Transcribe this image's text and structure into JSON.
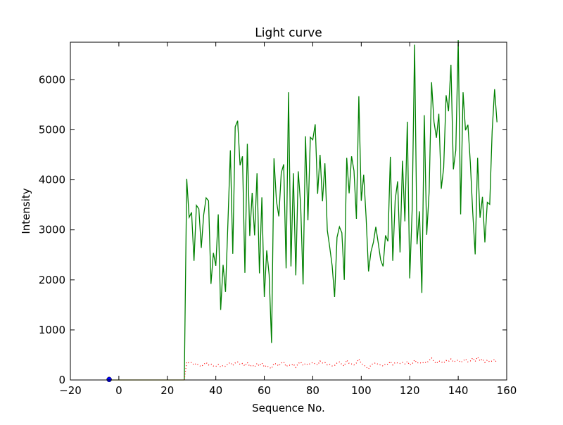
{
  "chart_data": {
    "type": "line",
    "title": "Light curve",
    "xlabel": "Sequence No.",
    "ylabel": "Intensity",
    "xlim": [
      -20,
      160
    ],
    "ylim": [
      0,
      6750
    ],
    "xticks": [
      -20,
      0,
      20,
      40,
      60,
      80,
      100,
      120,
      140,
      160
    ],
    "yticks": [
      0,
      1000,
      2000,
      3000,
      4000,
      5000,
      6000
    ],
    "grid": false,
    "colors": {
      "signal": "#008000",
      "background": "#ff0000",
      "marker": "#0000ff",
      "baseline": "#bfbf00"
    },
    "series": [
      {
        "style": "solid",
        "color": "#008000",
        "x": [
          27,
          28,
          29,
          30,
          31,
          32,
          33,
          34,
          35,
          36,
          37,
          38,
          39,
          40,
          41,
          42,
          43,
          44,
          45,
          46,
          47,
          48,
          49,
          50,
          51,
          52,
          53,
          54,
          55,
          56,
          57,
          58,
          59,
          60,
          61,
          62,
          63,
          64,
          65,
          66,
          67,
          68,
          69,
          70,
          71,
          72,
          73,
          74,
          75,
          76,
          77,
          78,
          79,
          80,
          81,
          82,
          83,
          84,
          85,
          86,
          87,
          88,
          89,
          90,
          91,
          92,
          93,
          94,
          95,
          96,
          97,
          98,
          99,
          100,
          101,
          102,
          103,
          104,
          105,
          106,
          107,
          108,
          109,
          110,
          111,
          112,
          113,
          114,
          115,
          116,
          117,
          118,
          119,
          120,
          121,
          122,
          123,
          124,
          125,
          126,
          127,
          128,
          129,
          130,
          131,
          132,
          133,
          134,
          135,
          136,
          137,
          138,
          139,
          140,
          141,
          142,
          143,
          144,
          145,
          146,
          147,
          148,
          149,
          150,
          151,
          152,
          153,
          154,
          155,
          156
        ],
        "y": [
          0,
          4020,
          3250,
          3350,
          2380,
          3490,
          3420,
          2640,
          3300,
          3640,
          3580,
          1920,
          2540,
          2280,
          3310,
          1400,
          2300,
          1760,
          3150,
          4590,
          2520,
          5060,
          5180,
          4290,
          4470,
          2140,
          4720,
          2880,
          3740,
          2890,
          4130,
          2130,
          3650,
          1660,
          2590,
          2100,
          740,
          4430,
          3580,
          3270,
          4140,
          4310,
          2230,
          5750,
          2270,
          4130,
          2090,
          4170,
          3500,
          1910,
          4870,
          3190,
          4850,
          4800,
          5110,
          3720,
          4500,
          3570,
          4330,
          2990,
          2650,
          2280,
          1660,
          2850,
          3060,
          2940,
          2000,
          4440,
          3730,
          4470,
          4180,
          3220,
          5670,
          3580,
          4100,
          3250,
          2170,
          2560,
          2750,
          3060,
          2740,
          2400,
          2270,
          2890,
          2770,
          4460,
          2380,
          3600,
          3970,
          2550,
          4380,
          3170,
          5160,
          2030,
          3400,
          6700,
          2710,
          3370,
          1740,
          5290,
          2900,
          3760,
          5950,
          5160,
          4840,
          5320,
          3820,
          4240,
          5690,
          5370,
          6300,
          4210,
          4590,
          6790,
          3310,
          5750,
          4990,
          5100,
          4340,
          3340,
          2510,
          4440,
          3240,
          3660,
          2750,
          3550,
          3510,
          4970,
          5810,
          5150
        ]
      },
      {
        "style": "dotted",
        "color": "#ff0000",
        "x": [
          27,
          28,
          29,
          30,
          31,
          32,
          33,
          34,
          35,
          36,
          37,
          38,
          39,
          40,
          41,
          42,
          43,
          44,
          45,
          46,
          47,
          48,
          49,
          50,
          51,
          52,
          53,
          54,
          55,
          56,
          57,
          58,
          59,
          60,
          61,
          62,
          63,
          64,
          65,
          66,
          67,
          68,
          69,
          70,
          71,
          72,
          73,
          74,
          75,
          76,
          77,
          78,
          79,
          80,
          81,
          82,
          83,
          84,
          85,
          86,
          87,
          88,
          89,
          90,
          91,
          92,
          93,
          94,
          95,
          96,
          97,
          98,
          99,
          100,
          101,
          102,
          103,
          104,
          105,
          106,
          107,
          108,
          109,
          110,
          111,
          112,
          113,
          114,
          115,
          116,
          117,
          118,
          119,
          120,
          121,
          122,
          123,
          124,
          125,
          126,
          127,
          128,
          129,
          130,
          131,
          132,
          133,
          134,
          135,
          136,
          137,
          138,
          139,
          140,
          141,
          142,
          143,
          144,
          145,
          146,
          147,
          148,
          149,
          150,
          151,
          152,
          153,
          154,
          155,
          156
        ],
        "y": [
          0,
          360,
          340,
          350,
          300,
          330,
          290,
          270,
          310,
          350,
          300,
          320,
          280,
          270,
          310,
          260,
          290,
          270,
          320,
          350,
          290,
          340,
          360,
          310,
          330,
          280,
          350,
          270,
          300,
          260,
          330,
          280,
          340,
          260,
          290,
          250,
          230,
          330,
          320,
          280,
          340,
          360,
          270,
          300,
          290,
          320,
          250,
          330,
          360,
          290,
          330,
          300,
          330,
          350,
          320,
          300,
          380,
          340,
          350,
          300,
          310,
          280,
          290,
          340,
          360,
          310,
          280,
          400,
          330,
          320,
          300,
          340,
          420,
          330,
          300,
          260,
          220,
          300,
          330,
          340,
          310,
          300,
          280,
          320,
          310,
          370,
          300,
          350,
          340,
          330,
          350,
          320,
          370,
          300,
          320,
          400,
          340,
          350,
          330,
          360,
          340,
          390,
          440,
          370,
          330,
          380,
          360,
          340,
          390,
          370,
          420,
          360,
          380,
          400,
          350,
          380,
          420,
          360,
          380,
          440,
          370,
          460,
          380,
          420,
          350,
          400,
          360,
          380,
          410,
          340
        ]
      },
      {
        "style": "solid",
        "color": "#bfbf00",
        "x": [
          -5,
          27
        ],
        "y": [
          0,
          0
        ]
      }
    ],
    "points": [
      {
        "x": -4,
        "y": 10,
        "color": "#0000ff"
      }
    ]
  }
}
